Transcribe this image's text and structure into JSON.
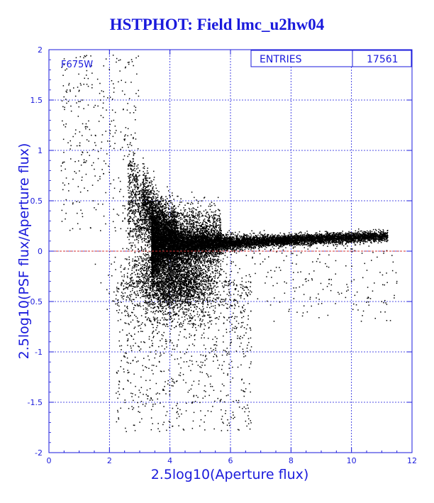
{
  "chart_data": {
    "type": "scatter",
    "title": "HSTPHOT: Field lmc_u2hw04",
    "xlabel": "2.5log10(Aperture flux)",
    "ylabel": "2.5log10(PSF flux/Aperture flux)",
    "xlim": [
      0,
      12
    ],
    "ylim": [
      -2,
      2
    ],
    "x_ticks": [
      "0",
      "2",
      "4",
      "6",
      "8",
      "10",
      "12"
    ],
    "y_ticks": [
      "-2",
      "-1.5",
      "-1",
      "-0.5",
      "0",
      "0.5",
      "1",
      "1.5",
      "2"
    ],
    "grid": true,
    "filter_label": "F675W",
    "stats_box": {
      "label": "ENTRIES",
      "value": "17561"
    },
    "reference_line": {
      "y": 0,
      "style": "dashed",
      "color": "#d03030"
    },
    "series": [
      {
        "color": "#000000",
        "distribution": {
          "count": 17561,
          "branch_x_range": [
            3.5,
            11.2
          ],
          "branch_center_start": 0.07,
          "branch_center_end": 0.15,
          "x_peak_range": [
            3.8,
            5.2
          ]
        },
        "sample_points": [
          [
            0.5,
            1.85
          ],
          [
            0.9,
            1.92
          ],
          [
            0.6,
            1.6
          ],
          [
            0.7,
            1.6
          ],
          [
            1.1,
            1.5
          ],
          [
            1.3,
            1.45
          ],
          [
            1.7,
            1.5
          ],
          [
            1.9,
            1.4
          ],
          [
            2.1,
            1.4
          ],
          [
            1.4,
            1.15
          ],
          [
            2.5,
            1.1
          ],
          [
            2.8,
            0.95
          ],
          [
            3.0,
            0.8
          ],
          [
            3.2,
            0.6
          ],
          [
            3.5,
            0.4
          ],
          [
            4.0,
            0.25
          ],
          [
            5.0,
            0.2
          ],
          [
            6.0,
            0.18
          ],
          [
            7.0,
            0.17
          ],
          [
            8.0,
            0.15
          ],
          [
            9.0,
            0.14
          ],
          [
            10.0,
            0.14
          ],
          [
            11.0,
            0.15
          ],
          [
            4.2,
            -0.3
          ],
          [
            4.5,
            -0.5
          ],
          [
            4.0,
            -0.9
          ],
          [
            4.6,
            -1.4
          ],
          [
            3.0,
            -1.6
          ],
          [
            4.0,
            -1.7
          ],
          [
            5.0,
            -1.2
          ],
          [
            8.5,
            -0.3
          ],
          [
            9.2,
            -0.35
          ],
          [
            10.0,
            -0.3
          ],
          [
            11.0,
            -0.5
          ],
          [
            11.5,
            -0.3
          ]
        ]
      }
    ]
  }
}
